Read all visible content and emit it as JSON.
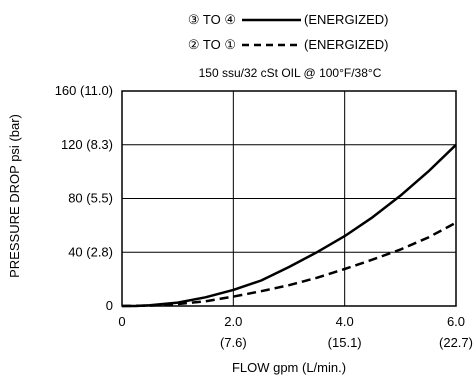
{
  "chart_data": {
    "type": "line",
    "title": "",
    "note": "150 ssu/32 cSt OIL @ 100°F/38°C",
    "xlabel": "FLOW gpm (L/min.)",
    "ylabel": "PRESSURE DROP psi (bar)",
    "xlim": [
      0,
      6.0
    ],
    "ylim": [
      0,
      160
    ],
    "x_ticks": [
      {
        "value": 0,
        "label": "0",
        "sublabel": ""
      },
      {
        "value": 2.0,
        "label": "2.0",
        "sublabel": "(7.6)"
      },
      {
        "value": 4.0,
        "label": "4.0",
        "sublabel": "(15.1)"
      },
      {
        "value": 6.0,
        "label": "6.0",
        "sublabel": "(22.7)"
      }
    ],
    "y_ticks": [
      {
        "value": 0,
        "label": "0"
      },
      {
        "value": 40,
        "label": "40 (2.8)"
      },
      {
        "value": 80,
        "label": "80 (5.5)"
      },
      {
        "value": 120,
        "label": "120 (8.3)"
      },
      {
        "value": 160,
        "label": "160 (11.0)"
      }
    ],
    "grid": true,
    "legend_position": "top",
    "series": [
      {
        "name": "③ TO ④",
        "suffix": "(ENERGIZED)",
        "style": "solid",
        "x": [
          0,
          0.25,
          0.5,
          1.0,
          1.5,
          2.0,
          2.5,
          3.0,
          3.5,
          4.0,
          4.5,
          5.0,
          5.5,
          6.0
        ],
        "y": [
          0,
          0,
          0.5,
          2.5,
          6.5,
          12,
          19,
          29,
          40,
          52,
          66,
          82,
          100,
          120
        ]
      },
      {
        "name": "② TO ①",
        "suffix": "(ENERGIZED)",
        "style": "dashed",
        "x": [
          0,
          0.5,
          1.0,
          1.5,
          2.0,
          2.5,
          3.0,
          3.5,
          4.0,
          4.5,
          5.0,
          5.5,
          6.0
        ],
        "y": [
          0,
          0.3,
          1.5,
          3.5,
          7,
          11,
          15.5,
          21,
          27.5,
          34.5,
          42,
          51,
          62
        ]
      }
    ]
  }
}
